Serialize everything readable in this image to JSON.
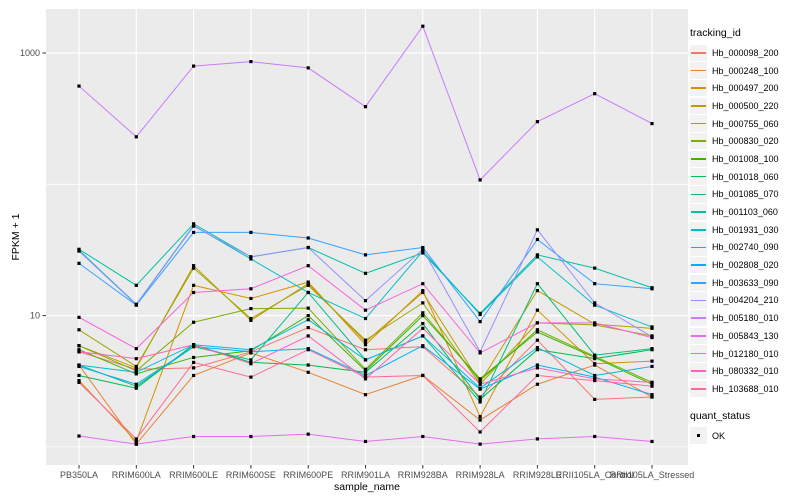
{
  "chart_data": {
    "type": "line",
    "title": "",
    "xlabel": "sample_name",
    "ylabel": "FPKM + 1",
    "y_scale": "log10",
    "ylim": [
      0.73,
      2160
    ],
    "grid": true,
    "legend_position": "right",
    "panel_bg": "#EBEBEB",
    "grid_color": "#FFFFFF",
    "axis_text_color": "#4D4D4D",
    "point_color": "#000000",
    "x_categories": [
      "PB350LA",
      "RRIM600LA",
      "RRIM600LE",
      "RRIM600SE",
      "RRIM600PE",
      "RRIM901LA",
      "RRIM928BA",
      "RRIM928LA",
      "RRIM928LE",
      "RRII105LA_Control",
      "RRII105LA_Stressed"
    ],
    "y_ticks": [
      {
        "label": "1000",
        "value": 1000
      },
      {
        "label": "10",
        "value": 10
      }
    ],
    "y_minor_gridlines": [
      100,
      1
    ],
    "legend": {
      "tracking_title": "tracking_id",
      "quant_title": "quant_status",
      "quant_items": [
        {
          "label": "OK"
        }
      ]
    },
    "series": [
      {
        "name": "Hb_000098_200",
        "color": "#F8766D",
        "values": [
          5.3,
          3.9,
          4.0,
          5.3,
          8.1,
          5.5,
          5.8,
          2.4,
          6.5,
          2.3,
          2.4
        ]
      },
      {
        "name": "Hb_000248_100",
        "color": "#EA8331",
        "values": [
          4.2,
          1.05,
          3.5,
          5.2,
          3.7,
          2.5,
          3.5,
          1.6,
          3.0,
          4.2,
          2.4
        ]
      },
      {
        "name": "Hb_000497_200",
        "color": "#D89000",
        "values": [
          3.2,
          1.1,
          17,
          13.5,
          18,
          6.0,
          15.5,
          1.7,
          11,
          4.3,
          4.5
        ]
      },
      {
        "name": "Hb_000500_220",
        "color": "#C09B00",
        "values": [
          5.9,
          4.0,
          24,
          9.2,
          17.5,
          6.3,
          15,
          3.1,
          15.5,
          8.6,
          8.0
        ]
      },
      {
        "name": "Hb_000755_060",
        "color": "#A3A500",
        "values": [
          7.8,
          4.1,
          23,
          9.5,
          17,
          6.5,
          12.5,
          3.0,
          8.8,
          8.5,
          7.0
        ]
      },
      {
        "name": "Hb_000830_020",
        "color": "#7CAE00",
        "values": [
          5.9,
          3.8,
          8.9,
          11.3,
          11.4,
          3.9,
          10.5,
          3.2,
          7.8,
          4.9,
          3.1
        ]
      },
      {
        "name": "Hb_001008_100",
        "color": "#39B600",
        "values": [
          5.5,
          3.6,
          4.8,
          5.4,
          10,
          3.8,
          10,
          3.3,
          7.5,
          4.8,
          3.0
        ]
      },
      {
        "name": "Hb_001018_060",
        "color": "#00BB4E",
        "values": [
          3.5,
          2.8,
          6.0,
          4.4,
          4.2,
          3.7,
          8.7,
          2.3,
          5.5,
          4.7,
          5.5
        ]
      },
      {
        "name": "Hb_001085_070",
        "color": "#00BF7D",
        "values": [
          4.2,
          2.9,
          5.8,
          4.6,
          15,
          4.6,
          7.0,
          2.2,
          17.5,
          5.0,
          5.6
        ]
      },
      {
        "name": "Hb_001103_060",
        "color": "#00C1A3",
        "values": [
          32,
          17,
          50,
          28,
          33,
          21,
          30,
          10.4,
          29,
          23,
          16.3
        ]
      },
      {
        "name": "Hb_001931_030",
        "color": "#00BFC4",
        "values": [
          31.5,
          12.2,
          48.5,
          27,
          15,
          9.5,
          31,
          10.2,
          28,
          12,
          8.2
        ]
      },
      {
        "name": "Hb_002740_090",
        "color": "#00BAE0",
        "values": [
          4.2,
          3.7,
          6.0,
          5.5,
          9.3,
          4.6,
          7.0,
          2.8,
          5.7,
          3.5,
          4.1
        ]
      },
      {
        "name": "Hb_002808_020",
        "color": "#00B0F6",
        "values": [
          4.1,
          3.0,
          5.8,
          5.3,
          5.6,
          3.5,
          5.9,
          2.75,
          4.2,
          3.4,
          2.5
        ]
      },
      {
        "name": "Hb_003633_090",
        "color": "#35A2FF",
        "values": [
          25,
          12,
          43,
          43,
          39,
          29,
          33,
          9.0,
          38,
          17.5,
          16
        ]
      },
      {
        "name": "Hb_004204_210",
        "color": "#9590FF",
        "values": [
          31,
          12.1,
          48,
          28,
          33,
          13,
          32,
          5.3,
          45,
          12.5,
          6.9
        ]
      },
      {
        "name": "Hb_005180_010",
        "color": "#C77CFF",
        "values": [
          560,
          230,
          795,
          860,
          770,
          390,
          1600,
          108,
          300,
          490,
          290
        ]
      },
      {
        "name": "Hb_005843_130",
        "color": "#E76BF3",
        "values": [
          1.21,
          1.05,
          1.2,
          1.2,
          1.25,
          1.1,
          1.2,
          1.05,
          1.15,
          1.2,
          1.1
        ]
      },
      {
        "name": "Hb_012180_010",
        "color": "#FA62DB",
        "values": [
          9.7,
          5.6,
          15,
          16,
          24,
          11,
          17.5,
          5.2,
          8.8,
          8.8,
          6.8
        ]
      },
      {
        "name": "Hb_080332_010",
        "color": "#FF62BC",
        "values": [
          5.3,
          4.7,
          6.0,
          4.3,
          7.0,
          3.3,
          8.0,
          3.0,
          4.0,
          3.3,
          3.1
        ]
      },
      {
        "name": "Hb_103688_010",
        "color": "#FF6A98",
        "values": [
          3.1,
          1.15,
          4.4,
          3.4,
          5.5,
          3.4,
          3.5,
          1.3,
          3.5,
          3.2,
          2.9
        ]
      }
    ]
  }
}
